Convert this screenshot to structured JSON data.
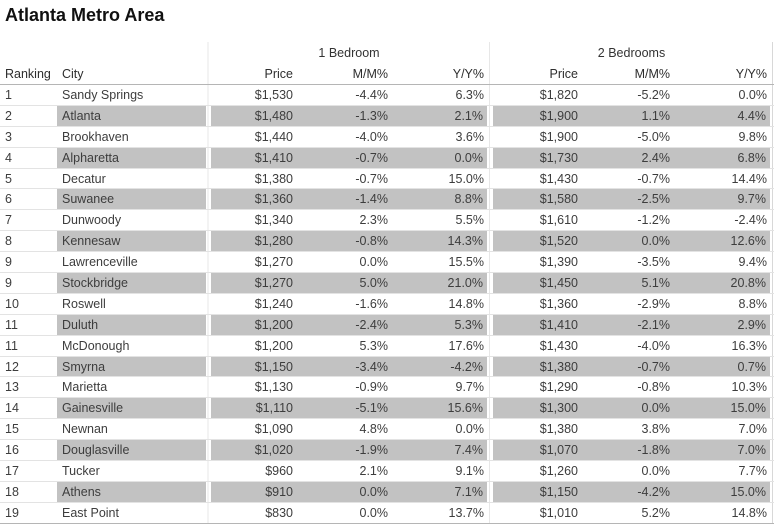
{
  "title": "Atlanta Metro Area",
  "colors": {
    "band": "#c2c2c2",
    "row_separator": "#e3e3e3",
    "header_border": "#b5b5b5",
    "text": "#3d3d3d",
    "title_text": "#111111"
  },
  "chart_data": {
    "type": "table",
    "title": "Atlanta Metro Area",
    "group_headers": [
      "1 Bedroom",
      "2 Bedrooms"
    ],
    "columns": [
      "Ranking",
      "City",
      "Price",
      "M/M%",
      "Y/Y%",
      "Price",
      "M/M%",
      "Y/Y%"
    ],
    "layout": {
      "banding": "alternating rows shaded gray starting with row 2",
      "ranking_column_unshaded": true
    }
  },
  "table": {
    "group1_label": "1 Bedroom",
    "group2_label": "2 Bedrooms",
    "col_ranking": "Ranking",
    "col_city": "City",
    "col_price1": "Price",
    "col_mm1": "M/M%",
    "col_yy1": "Y/Y%",
    "col_price2": "Price",
    "col_mm2": "M/M%",
    "col_yy2": "Y/Y%",
    "rows": [
      {
        "ranking": "1",
        "city": "Sandy Springs",
        "br1_price": "$1,530",
        "br1_mm": "-4.4%",
        "br1_yy": "6.3%",
        "br2_price": "$1,820",
        "br2_mm": "-5.2%",
        "br2_yy": "0.0%"
      },
      {
        "ranking": "2",
        "city": "Atlanta",
        "br1_price": "$1,480",
        "br1_mm": "-1.3%",
        "br1_yy": "2.1%",
        "br2_price": "$1,900",
        "br2_mm": "1.1%",
        "br2_yy": "4.4%"
      },
      {
        "ranking": "3",
        "city": "Brookhaven",
        "br1_price": "$1,440",
        "br1_mm": "-4.0%",
        "br1_yy": "3.6%",
        "br2_price": "$1,900",
        "br2_mm": "-5.0%",
        "br2_yy": "9.8%"
      },
      {
        "ranking": "4",
        "city": "Alpharetta",
        "br1_price": "$1,410",
        "br1_mm": "-0.7%",
        "br1_yy": "0.0%",
        "br2_price": "$1,730",
        "br2_mm": "2.4%",
        "br2_yy": "6.8%"
      },
      {
        "ranking": "5",
        "city": "Decatur",
        "br1_price": "$1,380",
        "br1_mm": "-0.7%",
        "br1_yy": "15.0%",
        "br2_price": "$1,430",
        "br2_mm": "-0.7%",
        "br2_yy": "14.4%"
      },
      {
        "ranking": "6",
        "city": "Suwanee",
        "br1_price": "$1,360",
        "br1_mm": "-1.4%",
        "br1_yy": "8.8%",
        "br2_price": "$1,580",
        "br2_mm": "-2.5%",
        "br2_yy": "9.7%"
      },
      {
        "ranking": "7",
        "city": "Dunwoody",
        "br1_price": "$1,340",
        "br1_mm": "2.3%",
        "br1_yy": "5.5%",
        "br2_price": "$1,610",
        "br2_mm": "-1.2%",
        "br2_yy": "-2.4%"
      },
      {
        "ranking": "8",
        "city": "Kennesaw",
        "br1_price": "$1,280",
        "br1_mm": "-0.8%",
        "br1_yy": "14.3%",
        "br2_price": "$1,520",
        "br2_mm": "0.0%",
        "br2_yy": "12.6%"
      },
      {
        "ranking": "9",
        "city": "Lawrenceville",
        "br1_price": "$1,270",
        "br1_mm": "0.0%",
        "br1_yy": "15.5%",
        "br2_price": "$1,390",
        "br2_mm": "-3.5%",
        "br2_yy": "9.4%"
      },
      {
        "ranking": "9",
        "city": "Stockbridge",
        "br1_price": "$1,270",
        "br1_mm": "5.0%",
        "br1_yy": "21.0%",
        "br2_price": "$1,450",
        "br2_mm": "5.1%",
        "br2_yy": "20.8%"
      },
      {
        "ranking": "10",
        "city": "Roswell",
        "br1_price": "$1,240",
        "br1_mm": "-1.6%",
        "br1_yy": "14.8%",
        "br2_price": "$1,360",
        "br2_mm": "-2.9%",
        "br2_yy": "8.8%"
      },
      {
        "ranking": "11",
        "city": "Duluth",
        "br1_price": "$1,200",
        "br1_mm": "-2.4%",
        "br1_yy": "5.3%",
        "br2_price": "$1,410",
        "br2_mm": "-2.1%",
        "br2_yy": "2.9%"
      },
      {
        "ranking": "11",
        "city": "McDonough",
        "br1_price": "$1,200",
        "br1_mm": "5.3%",
        "br1_yy": "17.6%",
        "br2_price": "$1,430",
        "br2_mm": "-4.0%",
        "br2_yy": "16.3%"
      },
      {
        "ranking": "12",
        "city": "Smyrna",
        "br1_price": "$1,150",
        "br1_mm": "-3.4%",
        "br1_yy": "-4.2%",
        "br2_price": "$1,380",
        "br2_mm": "-0.7%",
        "br2_yy": "0.7%"
      },
      {
        "ranking": "13",
        "city": "Marietta",
        "br1_price": "$1,130",
        "br1_mm": "-0.9%",
        "br1_yy": "9.7%",
        "br2_price": "$1,290",
        "br2_mm": "-0.8%",
        "br2_yy": "10.3%"
      },
      {
        "ranking": "14",
        "city": "Gainesville",
        "br1_price": "$1,110",
        "br1_mm": "-5.1%",
        "br1_yy": "15.6%",
        "br2_price": "$1,300",
        "br2_mm": "0.0%",
        "br2_yy": "15.0%"
      },
      {
        "ranking": "15",
        "city": "Newnan",
        "br1_price": "$1,090",
        "br1_mm": "4.8%",
        "br1_yy": "0.0%",
        "br2_price": "$1,380",
        "br2_mm": "3.8%",
        "br2_yy": "7.0%"
      },
      {
        "ranking": "16",
        "city": "Douglasville",
        "br1_price": "$1,020",
        "br1_mm": "-1.9%",
        "br1_yy": "7.4%",
        "br2_price": "$1,070",
        "br2_mm": "-1.8%",
        "br2_yy": "7.0%"
      },
      {
        "ranking": "17",
        "city": "Tucker",
        "br1_price": "$960",
        "br1_mm": "2.1%",
        "br1_yy": "9.1%",
        "br2_price": "$1,260",
        "br2_mm": "0.0%",
        "br2_yy": "7.7%"
      },
      {
        "ranking": "18",
        "city": "Athens",
        "br1_price": "$910",
        "br1_mm": "0.0%",
        "br1_yy": "7.1%",
        "br2_price": "$1,150",
        "br2_mm": "-4.2%",
        "br2_yy": "15.0%"
      },
      {
        "ranking": "19",
        "city": "East Point",
        "br1_price": "$830",
        "br1_mm": "0.0%",
        "br1_yy": "13.7%",
        "br2_price": "$1,010",
        "br2_mm": "5.2%",
        "br2_yy": "14.8%"
      }
    ]
  }
}
